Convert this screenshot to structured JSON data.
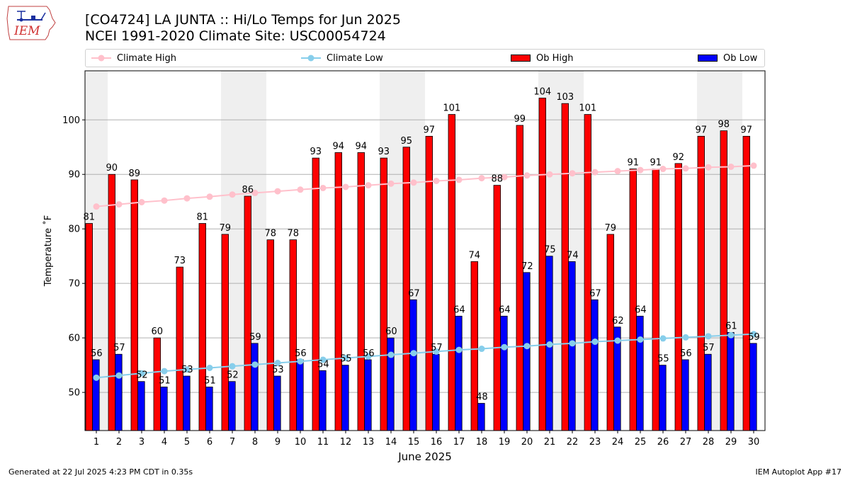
{
  "header": {
    "title_line1": "[CO4724] LA JUNTA :: Hi/Lo Temps for Jun 2025",
    "title_line2": "NCEI 1991-2020 Climate Site: USC00054724",
    "logo_text": "IEM"
  },
  "footer": {
    "left": "Generated at 22 Jul 2025 4:23 PM CDT in 0.35s",
    "right": "IEM Autoplot App #17"
  },
  "colors": {
    "ob_high": "#ff0000",
    "ob_low": "#0000ff",
    "climate_high": "#ffc0cb",
    "climate_low": "#87ceeb",
    "weekend_band": "#efefef",
    "grid": "#b0b0b0"
  },
  "chart_data": {
    "type": "bar",
    "title": "[CO4724] LA JUNTA :: Hi/Lo Temps for Jun 2025",
    "subtitle": "NCEI 1991-2020 Climate Site: USC00054724",
    "xlabel": "June 2025",
    "ylabel": "Temperature ˚F",
    "ylim": [
      43,
      109
    ],
    "yticks": [
      50,
      60,
      70,
      80,
      90,
      100
    ],
    "grid": true,
    "legend_position": "top",
    "categories": [
      "1",
      "2",
      "3",
      "4",
      "5",
      "6",
      "7",
      "8",
      "9",
      "10",
      "11",
      "12",
      "13",
      "14",
      "15",
      "16",
      "17",
      "18",
      "19",
      "20",
      "21",
      "22",
      "23",
      "24",
      "25",
      "26",
      "27",
      "28",
      "29",
      "30"
    ],
    "weekend_days": [
      1,
      7,
      8,
      14,
      15,
      21,
      22,
      28,
      29
    ],
    "series": [
      {
        "name": "Climate High",
        "kind": "line",
        "values": [
          84.1,
          84.5,
          84.9,
          85.2,
          85.6,
          85.9,
          86.3,
          86.6,
          86.9,
          87.2,
          87.5,
          87.7,
          88.0,
          88.3,
          88.5,
          88.8,
          89.0,
          89.3,
          89.5,
          89.8,
          90.0,
          90.2,
          90.4,
          90.6,
          90.8,
          91.0,
          91.1,
          91.3,
          91.4,
          91.6
        ]
      },
      {
        "name": "Climate Low",
        "kind": "line",
        "values": [
          52.7,
          53.1,
          53.5,
          53.9,
          54.2,
          54.5,
          54.8,
          55.1,
          55.4,
          55.7,
          56.0,
          56.3,
          56.6,
          56.9,
          57.2,
          57.5,
          57.8,
          58.0,
          58.3,
          58.5,
          58.8,
          59.0,
          59.3,
          59.5,
          59.7,
          59.9,
          60.1,
          60.3,
          60.5,
          60.7
        ]
      },
      {
        "name": "Ob High",
        "kind": "bar",
        "values": [
          81,
          90,
          89,
          60,
          73,
          81,
          79,
          86,
          78,
          78,
          93,
          94,
          94,
          93,
          95,
          97,
          101,
          74,
          88,
          99,
          104,
          103,
          101,
          79,
          91,
          91,
          92,
          97,
          98,
          97
        ]
      },
      {
        "name": "Ob Low",
        "kind": "bar",
        "values": [
          56,
          57,
          52,
          51,
          53,
          51,
          52,
          59,
          53,
          56,
          54,
          55,
          56,
          60,
          67,
          57,
          64,
          48,
          64,
          72,
          75,
          74,
          67,
          62,
          64,
          55,
          56,
          57,
          61,
          59
        ]
      }
    ]
  }
}
